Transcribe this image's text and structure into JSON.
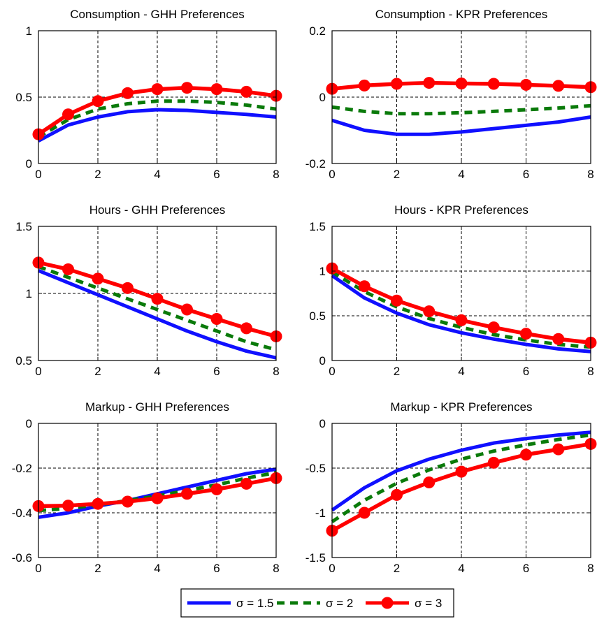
{
  "chart_data": [
    {
      "type": "line",
      "title": "Consumption - GHH Preferences",
      "x": [
        0,
        1,
        2,
        3,
        4,
        5,
        6,
        7,
        8
      ],
      "xticks": [
        "0",
        "2",
        "4",
        "6",
        "8"
      ],
      "ylim": [
        0,
        1
      ],
      "yticks": [
        "0",
        "0.5",
        "1"
      ],
      "grid": true,
      "series": [
        {
          "name": "σ = 1.5",
          "values": [
            0.17,
            0.29,
            0.35,
            0.39,
            0.405,
            0.4,
            0.385,
            0.37,
            0.35
          ]
        },
        {
          "name": "σ = 2",
          "values": [
            0.2,
            0.33,
            0.41,
            0.45,
            0.47,
            0.47,
            0.46,
            0.44,
            0.41
          ]
        },
        {
          "name": "σ = 3",
          "values": [
            0.22,
            0.37,
            0.47,
            0.53,
            0.56,
            0.57,
            0.56,
            0.54,
            0.51
          ]
        }
      ]
    },
    {
      "type": "line",
      "title": "Consumption - KPR Preferences",
      "x": [
        0,
        1,
        2,
        3,
        4,
        5,
        6,
        7,
        8
      ],
      "xticks": [
        "0",
        "2",
        "4",
        "6",
        "8"
      ],
      "ylim": [
        -0.2,
        0.2
      ],
      "yticks": [
        "-0.2",
        "0",
        "0.2"
      ],
      "grid": true,
      "series": [
        {
          "name": "σ = 1.5",
          "values": [
            -0.07,
            -0.1,
            -0.112,
            -0.112,
            -0.105,
            -0.095,
            -0.085,
            -0.075,
            -0.06
          ]
        },
        {
          "name": "σ = 2",
          "values": [
            -0.03,
            -0.043,
            -0.05,
            -0.05,
            -0.047,
            -0.043,
            -0.038,
            -0.033,
            -0.026
          ]
        },
        {
          "name": "σ = 3",
          "values": [
            0.025,
            0.035,
            0.04,
            0.043,
            0.041,
            0.04,
            0.037,
            0.034,
            0.03
          ]
        }
      ]
    },
    {
      "type": "line",
      "title": "Hours - GHH Preferences",
      "x": [
        0,
        1,
        2,
        3,
        4,
        5,
        6,
        7,
        8
      ],
      "xticks": [
        "0",
        "2",
        "4",
        "6",
        "8"
      ],
      "ylim": [
        0.5,
        1.5
      ],
      "yticks": [
        "0.5",
        "1",
        "1.5"
      ],
      "grid": true,
      "series": [
        {
          "name": "σ = 1.5",
          "values": [
            1.17,
            1.08,
            0.99,
            0.9,
            0.81,
            0.72,
            0.64,
            0.57,
            0.52
          ]
        },
        {
          "name": "σ = 2",
          "values": [
            1.2,
            1.12,
            1.04,
            0.96,
            0.88,
            0.8,
            0.72,
            0.64,
            0.58
          ]
        },
        {
          "name": "σ = 3",
          "values": [
            1.23,
            1.18,
            1.11,
            1.04,
            0.96,
            0.88,
            0.81,
            0.74,
            0.68
          ]
        }
      ]
    },
    {
      "type": "line",
      "title": "Hours  - KPR Preferences",
      "x": [
        0,
        1,
        2,
        3,
        4,
        5,
        6,
        7,
        8
      ],
      "xticks": [
        "0",
        "2",
        "4",
        "6",
        "8"
      ],
      "ylim": [
        0,
        1.5
      ],
      "yticks": [
        "0",
        "0.5",
        "1",
        "1.5"
      ],
      "grid": true,
      "series": [
        {
          "name": "σ = 1.5",
          "values": [
            0.95,
            0.7,
            0.53,
            0.4,
            0.31,
            0.24,
            0.18,
            0.13,
            0.1
          ]
        },
        {
          "name": "σ = 2",
          "values": [
            0.99,
            0.77,
            0.6,
            0.47,
            0.37,
            0.29,
            0.23,
            0.18,
            0.15
          ]
        },
        {
          "name": "σ = 3",
          "values": [
            1.03,
            0.83,
            0.67,
            0.55,
            0.45,
            0.37,
            0.3,
            0.24,
            0.2
          ]
        }
      ]
    },
    {
      "type": "line",
      "title": "Markup - GHH Preferences",
      "x": [
        0,
        1,
        2,
        3,
        4,
        5,
        6,
        7,
        8
      ],
      "xticks": [
        "0",
        "2",
        "4",
        "6",
        "8"
      ],
      "ylim": [
        -0.6,
        0
      ],
      "yticks": [
        "-0.6",
        "-0.4",
        "-0.2",
        "0"
      ],
      "grid": true,
      "series": [
        {
          "name": "σ = 1.5",
          "values": [
            -0.42,
            -0.4,
            -0.37,
            -0.345,
            -0.315,
            -0.285,
            -0.255,
            -0.225,
            -0.205
          ]
        },
        {
          "name": "σ = 2",
          "values": [
            -0.39,
            -0.38,
            -0.365,
            -0.345,
            -0.325,
            -0.3,
            -0.275,
            -0.245,
            -0.22
          ]
        },
        {
          "name": "σ = 3",
          "values": [
            -0.37,
            -0.368,
            -0.36,
            -0.35,
            -0.335,
            -0.315,
            -0.295,
            -0.27,
            -0.245
          ]
        }
      ]
    },
    {
      "type": "line",
      "title": "Markup - KPR Preferences",
      "x": [
        0,
        1,
        2,
        3,
        4,
        5,
        6,
        7,
        8
      ],
      "xticks": [
        "0",
        "2",
        "4",
        "6",
        "8"
      ],
      "ylim": [
        -1.5,
        0
      ],
      "yticks": [
        "-1.5",
        "-1",
        "-0.5",
        "0"
      ],
      "grid": true,
      "series": [
        {
          "name": "σ = 1.5",
          "values": [
            -0.97,
            -0.72,
            -0.53,
            -0.4,
            -0.3,
            -0.22,
            -0.17,
            -0.13,
            -0.1
          ]
        },
        {
          "name": "σ = 2",
          "values": [
            -1.1,
            -0.86,
            -0.67,
            -0.52,
            -0.4,
            -0.31,
            -0.24,
            -0.18,
            -0.13
          ]
        },
        {
          "name": "σ = 3",
          "values": [
            -1.2,
            -1.0,
            -0.8,
            -0.66,
            -0.54,
            -0.44,
            -0.35,
            -0.29,
            -0.23
          ]
        }
      ]
    }
  ],
  "legend": {
    "entries": [
      {
        "label": "σ = 1.5"
      },
      {
        "label": "σ = 2"
      },
      {
        "label": "σ = 3"
      }
    ]
  },
  "colors": {
    "series": [
      "#1010ff",
      "#0a7a0a",
      "#ff0000"
    ],
    "grid": "#000000",
    "axis": "#000000"
  }
}
